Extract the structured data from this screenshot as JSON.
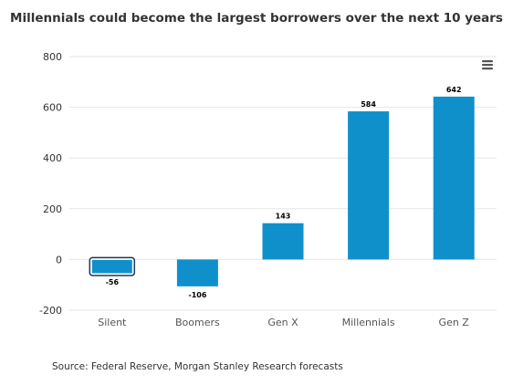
{
  "source_note": "Source: Federal Reserve, Morgan Stanley Research forecasts",
  "menu_icon": "hamburger-menu-icon",
  "colors": {
    "bar": "#1090cb",
    "grid": "#e6e6e6",
    "highlight_outline": "#1a3a57"
  },
  "chart_data": {
    "type": "bar",
    "title": "Millennials could become the largest borrowers over the next 10 years",
    "xlabel": "",
    "ylabel": "",
    "categories": [
      "Silent",
      "Boomers",
      "Gen X",
      "Millennials",
      "Gen Z"
    ],
    "values": [
      -56,
      -106,
      143,
      584,
      642
    ],
    "data_labels": [
      "-56",
      "-106",
      "143",
      "584",
      "642"
    ],
    "ylim": [
      -200,
      800
    ],
    "yticks": [
      -200,
      0,
      200,
      400,
      600,
      800
    ],
    "ytick_labels": [
      "-200",
      "0",
      "200",
      "400",
      "600",
      "800"
    ],
    "grid": true,
    "legend": "none",
    "highlighted_category": "Silent"
  }
}
